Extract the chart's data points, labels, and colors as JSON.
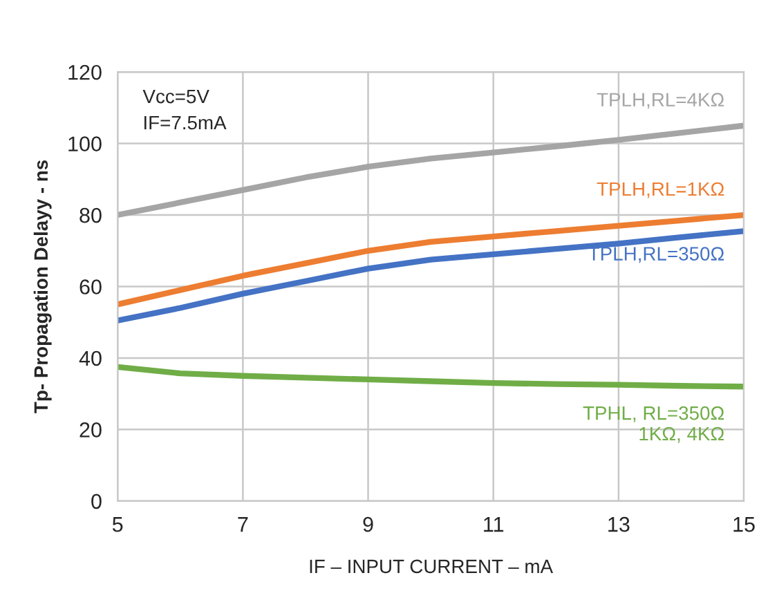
{
  "chart_data": {
    "type": "line",
    "xlabel": "IF – INPUT CURRENT – mA",
    "ylabel": "Tp- Propagation Delayy - ns",
    "annotations": [
      "Vcc=5V\nIF=7.5mA"
    ],
    "x": [
      5,
      6,
      7,
      8,
      9,
      10,
      11,
      12,
      13,
      14,
      15
    ],
    "series": [
      {
        "name": "TPLH,RL=4KΩ",
        "color": "#a5a5a5",
        "values": [
          80,
          83.5,
          87,
          90.5,
          93.5,
          95.8,
          97.5,
          99.2,
          101,
          103,
          105
        ]
      },
      {
        "name": "TPLH,RL=1KΩ",
        "color": "#ed7d31",
        "values": [
          55,
          59,
          63,
          66.5,
          70,
          72.5,
          74,
          75.5,
          77,
          78.5,
          80
        ]
      },
      {
        "name": "TPLH,RL=350Ω",
        "color": "#4472c4",
        "values": [
          50.5,
          54,
          58,
          61.5,
          65,
          67.5,
          69,
          70.5,
          72,
          73.8,
          75.5
        ]
      },
      {
        "name": "TPHL, RL=350Ω\n1KΩ, 4KΩ",
        "color": "#70ad47",
        "values": [
          37.5,
          35.7,
          35,
          34.5,
          34,
          33.5,
          33,
          32.7,
          32.5,
          32.2,
          32
        ]
      }
    ],
    "xlim": [
      5,
      15
    ],
    "xticks": [
      5,
      7,
      9,
      11,
      13,
      15
    ],
    "ylim": [
      0,
      120
    ],
    "yticks": [
      0,
      20,
      40,
      60,
      80,
      100,
      120
    ],
    "grid": true,
    "marker": "none",
    "line_style": "solid"
  }
}
